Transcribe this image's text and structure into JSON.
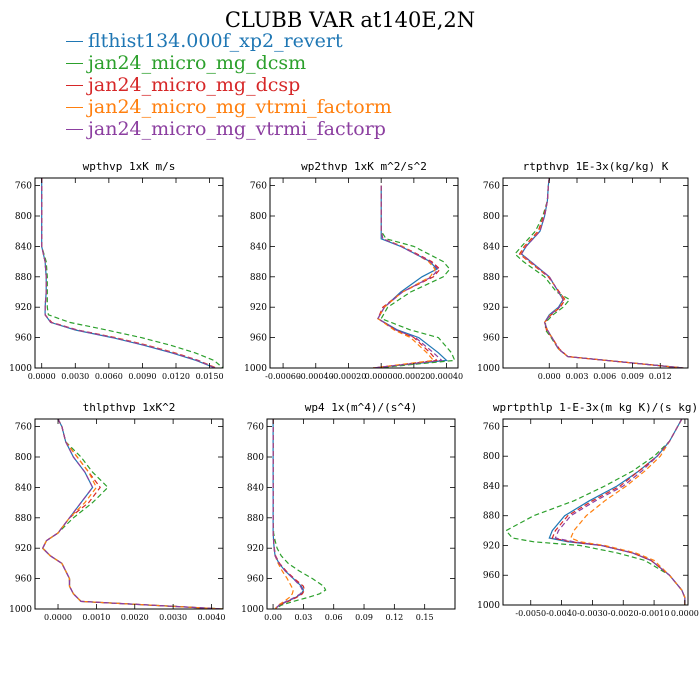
{
  "figure": {
    "title": "CLUBB VAR at140E,2N"
  },
  "legend": [
    {
      "name": "flthist134.000f_xp2_revert",
      "color": "#1f77b4",
      "dash": "solid"
    },
    {
      "name": "jan24_micro_mg_dcsm",
      "color": "#2ca02c",
      "dash": "dashed"
    },
    {
      "name": "jan24_micro_mg_dcsp",
      "color": "#d62728",
      "dash": "dashed"
    },
    {
      "name": "jan24_micro_mg_vtrmi_factorm",
      "color": "#ff7f0e",
      "dash": "dashed"
    },
    {
      "name": "jan24_micro_mg_vtrmi_factorp",
      "color": "#8c3fa0",
      "dash": "dashed"
    }
  ],
  "chart_data": [
    {
      "type": "line",
      "title": "wpthvp  1xK m/s",
      "xlim": [
        -0.0006,
        0.0162
      ],
      "ylim": [
        1000,
        750
      ],
      "xticks": [
        0.0,
        0.003,
        0.006,
        0.009,
        0.012,
        0.015
      ],
      "xtick_labels": [
        "0.0000",
        "0.0030",
        "0.0060",
        "0.0090",
        "0.0120",
        "0.0150"
      ],
      "yticks": [
        760,
        800,
        840,
        880,
        920,
        960,
        1000
      ],
      "y": [
        750,
        760,
        780,
        800,
        820,
        840,
        860,
        880,
        900,
        920,
        930,
        940,
        950,
        960,
        970,
        980,
        990,
        1000
      ],
      "series": [
        {
          "values": [
            0.0,
            0.0,
            0.0,
            0.0,
            0.0,
            0.0,
            0.0003,
            0.0004,
            0.0004,
            0.0003,
            0.0003,
            0.0008,
            0.003,
            0.0063,
            0.0091,
            0.0116,
            0.0138,
            0.0155
          ]
        },
        {
          "values": [
            0.0,
            0.0,
            0.0,
            0.0,
            0.0,
            0.0,
            0.0004,
            0.0005,
            0.0005,
            0.0005,
            0.0006,
            0.0025,
            0.0058,
            0.0089,
            0.0115,
            0.0137,
            0.0154,
            0.0162
          ]
        },
        {
          "values": [
            0.0,
            0.0,
            0.0,
            0.0,
            0.0,
            0.0,
            0.0003,
            0.0004,
            0.0004,
            0.0003,
            0.0003,
            0.0009,
            0.0032,
            0.0066,
            0.0094,
            0.0119,
            0.014,
            0.0156
          ]
        },
        {
          "values": [
            0.0,
            0.0,
            0.0,
            0.0,
            0.0,
            0.0,
            0.0003,
            0.0004,
            0.0004,
            0.0003,
            0.0003,
            0.0008,
            0.0031,
            0.0065,
            0.0093,
            0.0118,
            0.0139,
            0.0156
          ]
        },
        {
          "values": [
            0.0,
            0.0,
            0.0,
            0.0,
            0.0,
            0.0,
            0.0003,
            0.0004,
            0.0004,
            0.0003,
            0.0003,
            0.0008,
            0.0031,
            0.0064,
            0.0092,
            0.0117,
            0.0139,
            0.0155
          ]
        }
      ]
    },
    {
      "type": "line",
      "title": "wp2thvp  1xK m^2/s^2",
      "xlim": [
        -0.00068,
        0.00047
      ],
      "ylim": [
        1000,
        750
      ],
      "xticks": [
        -0.0006,
        -0.0004,
        -0.0002,
        0.0,
        0.0002,
        0.0004
      ],
      "xtick_labels": [
        "-0.00060",
        "-0.00040",
        "-0.00020",
        "0.00000",
        "0.00020",
        "0.00040"
      ],
      "yticks": [
        760,
        800,
        840,
        880,
        920,
        960,
        1000
      ],
      "y": [
        760,
        780,
        800,
        820,
        830,
        840,
        860,
        870,
        880,
        900,
        920,
        935,
        950,
        960,
        980,
        990,
        1000
      ],
      "series": [
        {
          "values": [
            0.0,
            0.0,
            0.0,
            0.0,
            0.0,
            0.00012,
            0.0003,
            0.00034,
            0.00025,
            0.00012,
            2e-05,
            -2e-05,
            0.0001,
            0.00023,
            0.00035,
            0.0004,
            -5e-05
          ]
        },
        {
          "values": [
            0.0,
            0.0,
            0.0,
            0.0,
            3e-05,
            0.0002,
            0.00038,
            0.00042,
            0.00038,
            0.00018,
            4e-05,
            0.0,
            0.00018,
            0.00035,
            0.00043,
            0.00045,
            -3e-05
          ]
        },
        {
          "values": [
            0.0,
            0.0,
            0.0,
            0.0,
            1e-05,
            0.00013,
            0.00031,
            0.00036,
            0.00032,
            0.00013,
            1e-05,
            -2e-05,
            9e-05,
            0.0002,
            0.0003,
            0.00034,
            -5e-05
          ]
        },
        {
          "values": [
            0.0,
            0.0,
            0.0,
            0.0,
            1e-05,
            0.00013,
            0.00029,
            0.00033,
            0.0003,
            0.00013,
            2e-05,
            -2e-05,
            8e-05,
            0.00018,
            0.00028,
            0.00032,
            -5e-05
          ]
        },
        {
          "values": [
            0.0,
            0.0,
            0.0,
            0.0,
            1e-05,
            0.00012,
            0.0003,
            0.00035,
            0.00031,
            0.00013,
            2e-05,
            -2e-05,
            9e-05,
            0.00021,
            0.00032,
            0.00037,
            -5e-05
          ]
        }
      ]
    },
    {
      "type": "line",
      "title": "rtpthvp  1E-3x(kg/kg) K",
      "xlim": [
        -0.005,
        0.015
      ],
      "ylim": [
        1000,
        750
      ],
      "xticks": [
        0.0,
        0.003,
        0.006,
        0.009,
        0.012
      ],
      "xtick_labels": [
        "0.000",
        "0.003",
        "0.006",
        "0.009",
        "0.012"
      ],
      "yticks": [
        760,
        800,
        840,
        880,
        920,
        960,
        1000
      ],
      "y": [
        750,
        760,
        780,
        800,
        820,
        840,
        850,
        860,
        880,
        900,
        910,
        920,
        930,
        940,
        950,
        960,
        975,
        985,
        1000
      ],
      "series": [
        {
          "values": [
            0.0,
            -0.0001,
            -0.0002,
            -0.0005,
            -0.001,
            -0.0025,
            -0.003,
            -0.002,
            0.0,
            0.001,
            0.0015,
            0.001,
            0.0,
            -0.0005,
            -0.0002,
            0.0003,
            0.001,
            0.002,
            0.0145
          ]
        },
        {
          "values": [
            0.0,
            -0.0001,
            -0.0002,
            -0.0007,
            -0.0015,
            -0.003,
            -0.0037,
            -0.0028,
            -0.0005,
            0.0008,
            0.0022,
            0.0015,
            0.0004,
            -0.0004,
            -0.0004,
            0.0002,
            0.001,
            0.002,
            0.0145
          ]
        },
        {
          "values": [
            0.0,
            -0.0001,
            -0.0002,
            -0.0006,
            -0.0012,
            -0.0027,
            -0.0032,
            -0.0022,
            -0.0001,
            0.0011,
            0.0017,
            0.0012,
            0.0002,
            -0.0005,
            -0.0003,
            0.0003,
            0.0011,
            0.002,
            0.0145
          ]
        },
        {
          "values": [
            0.0,
            -0.0001,
            -0.0002,
            -0.0005,
            -0.0011,
            -0.0026,
            -0.0031,
            -0.0021,
            0.0,
            0.001,
            0.0016,
            0.0011,
            0.0001,
            -0.0005,
            -0.0002,
            0.0003,
            0.001,
            0.002,
            0.0145
          ]
        },
        {
          "values": [
            0.0,
            -0.0001,
            -0.0002,
            -0.0005,
            -0.001,
            -0.0025,
            -0.003,
            -0.002,
            0.0,
            0.001,
            0.0015,
            0.0011,
            0.0001,
            -0.0005,
            -0.0002,
            0.0003,
            0.001,
            0.002,
            0.0145
          ]
        }
      ]
    },
    {
      "type": "line",
      "title": "thlpthvp  1xK^2",
      "xlim": [
        -0.0006,
        0.0043
      ],
      "ylim": [
        1000,
        750
      ],
      "xticks": [
        0.0,
        0.001,
        0.002,
        0.003,
        0.004
      ],
      "xtick_labels": [
        "0.0000",
        "0.0010",
        "0.0020",
        "0.0030",
        "0.0040"
      ],
      "yticks": [
        760,
        800,
        840,
        880,
        920,
        960,
        1000
      ],
      "y": [
        750,
        760,
        780,
        800,
        820,
        840,
        860,
        880,
        900,
        910,
        920,
        930,
        940,
        950,
        960,
        970,
        980,
        990,
        1000
      ],
      "series": [
        {
          "values": [
            0.0,
            0.0001,
            0.0002,
            0.0004,
            0.0007,
            0.0009,
            0.0006,
            0.0003,
            0.0,
            -0.0003,
            -0.0004,
            -0.0002,
            0.0001,
            0.0002,
            0.0003,
            0.0003,
            0.0004,
            0.0006,
            0.0043
          ]
        },
        {
          "values": [
            0.0,
            0.0001,
            0.0002,
            0.0006,
            0.0009,
            0.0013,
            0.0009,
            0.0004,
            0.0,
            -0.0003,
            -0.0004,
            -0.0002,
            0.0001,
            0.0002,
            0.0003,
            0.0003,
            0.0004,
            0.0006,
            0.0043
          ]
        },
        {
          "values": [
            0.0,
            0.0001,
            0.0002,
            0.0005,
            0.0008,
            0.0011,
            0.0008,
            0.0003,
            0.0,
            -0.0003,
            -0.0004,
            -0.0002,
            0.0001,
            0.0002,
            0.0003,
            0.0003,
            0.0004,
            0.0006,
            0.0043
          ]
        },
        {
          "values": [
            0.0,
            0.0001,
            0.0002,
            0.0005,
            0.0008,
            0.001,
            0.0007,
            0.0003,
            0.0,
            -0.0003,
            -0.0004,
            -0.0002,
            0.0001,
            0.0002,
            0.0003,
            0.0003,
            0.0004,
            0.0006,
            0.0043
          ]
        },
        {
          "values": [
            0.0,
            0.0001,
            0.0002,
            0.0004,
            0.0007,
            0.0009,
            0.0006,
            0.0003,
            0.0,
            -0.0003,
            -0.0004,
            -0.0002,
            0.0001,
            0.0002,
            0.0003,
            0.0003,
            0.0004,
            0.0006,
            0.0043
          ]
        }
      ]
    },
    {
      "type": "line",
      "title": "wp4  1x(m^4)/(s^4)",
      "xlim": [
        -0.006,
        0.18
      ],
      "ylim": [
        1000,
        750
      ],
      "xticks": [
        0.0,
        0.03,
        0.06,
        0.09,
        0.12,
        0.15
      ],
      "xtick_labels": [
        "0.00",
        "0.03",
        "0.06",
        "0.09",
        "0.12",
        "0.15"
      ],
      "yticks": [
        760,
        800,
        840,
        880,
        920,
        960,
        1000
      ],
      "y": [
        750,
        800,
        850,
        880,
        900,
        910,
        920,
        930,
        940,
        950,
        960,
        970,
        975,
        980,
        985,
        990,
        995,
        1000
      ],
      "series": [
        {
          "values": [
            0.0,
            0.0,
            0.0,
            0.0,
            0.0,
            0.0005,
            0.001,
            0.002,
            0.006,
            0.012,
            0.02,
            0.028,
            0.03,
            0.028,
            0.022,
            0.014,
            0.006,
            0.002
          ]
        },
        {
          "values": [
            0.0,
            0.0,
            0.0,
            0.0,
            0.0005,
            0.002,
            0.004,
            0.008,
            0.015,
            0.026,
            0.039,
            0.05,
            0.052,
            0.046,
            0.034,
            0.02,
            0.008,
            0.002
          ]
        },
        {
          "values": [
            0.0,
            0.0,
            0.0,
            0.0,
            0.0,
            0.0006,
            0.0012,
            0.0025,
            0.0065,
            0.013,
            0.021,
            0.03,
            0.031,
            0.029,
            0.023,
            0.015,
            0.006,
            0.002
          ]
        },
        {
          "values": [
            0.0,
            0.0,
            0.0,
            0.0,
            0.0,
            0.0005,
            0.001,
            0.002,
            0.005,
            0.009,
            0.014,
            0.018,
            0.02,
            0.019,
            0.016,
            0.011,
            0.005,
            0.002
          ]
        },
        {
          "values": [
            0.0,
            0.0,
            0.0,
            0.0,
            0.0,
            0.0005,
            0.001,
            0.002,
            0.006,
            0.012,
            0.02,
            0.027,
            0.029,
            0.027,
            0.021,
            0.013,
            0.006,
            0.002
          ]
        }
      ]
    },
    {
      "type": "line",
      "title": "wprtpthlp  1-E-3x(m kg K)/(s kg)",
      "xlim": [
        -0.0059,
        0.0001
      ],
      "ylim": [
        1000,
        750
      ],
      "xticks": [
        -0.005,
        -0.004,
        -0.003,
        -0.002,
        -0.001,
        0.0
      ],
      "xtick_labels": [
        "-0.0050",
        "-0.0040",
        "-0.0030",
        "-0.0020",
        "-0.0010",
        "0.0000"
      ],
      "yticks": [
        760,
        800,
        840,
        880,
        920,
        960,
        1000
      ],
      "y": [
        750,
        780,
        800,
        820,
        840,
        860,
        880,
        900,
        910,
        915,
        920,
        930,
        940,
        960,
        980,
        990,
        1000
      ],
      "series": [
        {
          "values": [
            -0.0001,
            -0.0005,
            -0.0009,
            -0.0015,
            -0.0022,
            -0.0031,
            -0.0039,
            -0.0043,
            -0.0044,
            -0.0038,
            -0.0027,
            -0.0017,
            -0.0011,
            -0.0005,
            -0.0001,
            0.0,
            0.0
          ]
        },
        {
          "values": [
            -0.0001,
            -0.0005,
            -0.001,
            -0.0017,
            -0.0026,
            -0.0036,
            -0.0049,
            -0.0058,
            -0.0056,
            -0.0049,
            -0.0034,
            -0.0022,
            -0.0013,
            -0.0005,
            -0.0001,
            0.0,
            0.0
          ]
        },
        {
          "values": [
            -0.0001,
            -0.0005,
            -0.0009,
            -0.0015,
            -0.0021,
            -0.003,
            -0.0038,
            -0.0042,
            -0.0043,
            -0.0037,
            -0.0027,
            -0.0017,
            -0.0011,
            -0.0005,
            -0.0001,
            0.0,
            0.0
          ]
        },
        {
          "values": [
            -0.0001,
            -0.0005,
            -0.0008,
            -0.0013,
            -0.0019,
            -0.0026,
            -0.0032,
            -0.0036,
            -0.0037,
            -0.0034,
            -0.0026,
            -0.0016,
            -0.001,
            -0.0005,
            -0.0001,
            0.0,
            0.0
          ]
        },
        {
          "values": [
            -0.0001,
            -0.0005,
            -0.0009,
            -0.0014,
            -0.002,
            -0.0029,
            -0.0037,
            -0.0041,
            -0.0042,
            -0.0036,
            -0.0027,
            -0.0017,
            -0.0011,
            -0.0005,
            -0.0001,
            0.0,
            0.0
          ]
        }
      ]
    }
  ]
}
